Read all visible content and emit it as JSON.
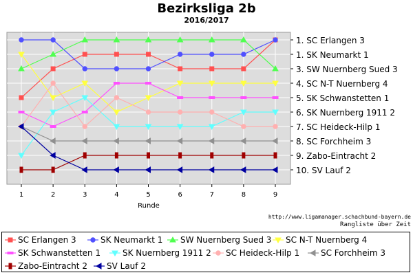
{
  "chart_data": {
    "type": "line",
    "title": "Bezirksliga 2b",
    "subtitle": "2016/2017",
    "xlabel": "Runde",
    "ylabel": "",
    "x": [
      1,
      2,
      3,
      4,
      5,
      6,
      7,
      8,
      9
    ],
    "ylim": [
      1,
      10
    ],
    "y_inverted": true,
    "grid": true,
    "legend_position": "bottom",
    "background": "#dddddd",
    "right_labels": [
      "1.  SC Erlangen 3",
      "1.  SK Neumarkt 1",
      "3.  SW Nuernberg Sued 3",
      "4.  SC N-T Nuernberg 4",
      "5.  SK Schwanstetten 1",
      "6.  SK Nuernberg 1911 2",
      "7.  SC Heideck-Hilp 1",
      "8.  SC Forchheim 3",
      "9.  Zabo-Eintracht 2",
      "10.  SV Lauf 2"
    ],
    "series": [
      {
        "name": "SC Erlangen 3",
        "color": "#ff5050",
        "marker": "square",
        "values": [
          5,
          3,
          2,
          2,
          2,
          3,
          3,
          3,
          1
        ]
      },
      {
        "name": "SK Neumarkt 1",
        "color": "#5050ff",
        "marker": "circle",
        "values": [
          1,
          1,
          3,
          3,
          3,
          2,
          2,
          2,
          1
        ]
      },
      {
        "name": "SW Nuernberg Sued 3",
        "color": "#50ff50",
        "marker": "triangle-up",
        "values": [
          3,
          2,
          1,
          1,
          1,
          1,
          1,
          1,
          3
        ]
      },
      {
        "name": "SC N-T Nuernberg 4",
        "color": "#ffff40",
        "marker": "triangle-down",
        "values": [
          2,
          5,
          4,
          6,
          5,
          4,
          4,
          4,
          4
        ]
      },
      {
        "name": "SK Schwanstetten 1",
        "color": "#ff50ff",
        "marker": "dash",
        "values": [
          6,
          7,
          6,
          4,
          4,
          5,
          5,
          5,
          5
        ]
      },
      {
        "name": "SK Nuernberg 1911 2",
        "color": "#60ffff",
        "marker": "triangle-down",
        "values": [
          9,
          6,
          5,
          7,
          7,
          7,
          7,
          6,
          6
        ]
      },
      {
        "name": "SC Heideck-Hilp 1",
        "color": "#ffb0b0",
        "marker": "circle",
        "values": [
          7,
          4,
          7,
          5,
          6,
          6,
          6,
          7,
          7
        ]
      },
      {
        "name": "SC Forchheim 3",
        "color": "#909090",
        "marker": "triangle-left",
        "values": [
          7,
          8,
          8,
          8,
          8,
          8,
          8,
          8,
          8
        ]
      },
      {
        "name": "Zabo-Eintracht 2",
        "color": "#a00000",
        "marker": "bar",
        "values": [
          10,
          10,
          9,
          9,
          9,
          9,
          9,
          9,
          9
        ]
      },
      {
        "name": "SV Lauf 2",
        "color": "#0000a0",
        "marker": "triangle-left",
        "values": [
          7,
          9,
          10,
          10,
          10,
          10,
          10,
          10,
          10
        ]
      }
    ]
  },
  "footer": {
    "credit": "http://www.ligamanager.schachbund-bayern.de",
    "note": "Rangliste über Zeit"
  }
}
